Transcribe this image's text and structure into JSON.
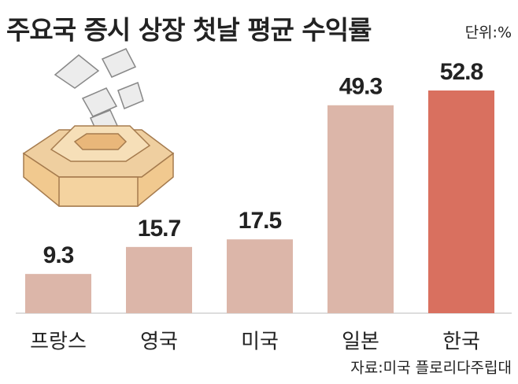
{
  "chart_data": {
    "type": "bar",
    "title": "주요국 증시 상장 첫날 평균 수익률",
    "unit": "단위:%",
    "source": "자료:미국 플로리다주립대",
    "categories": [
      "프랑스",
      "영국",
      "미국",
      "일본",
      "한국"
    ],
    "values": [
      9.3,
      15.7,
      17.5,
      49.3,
      52.8
    ],
    "colors": [
      "#dcb6a9",
      "#dcb6a9",
      "#dcb6a9",
      "#dcb6a9",
      "#d9705f"
    ]
  }
}
